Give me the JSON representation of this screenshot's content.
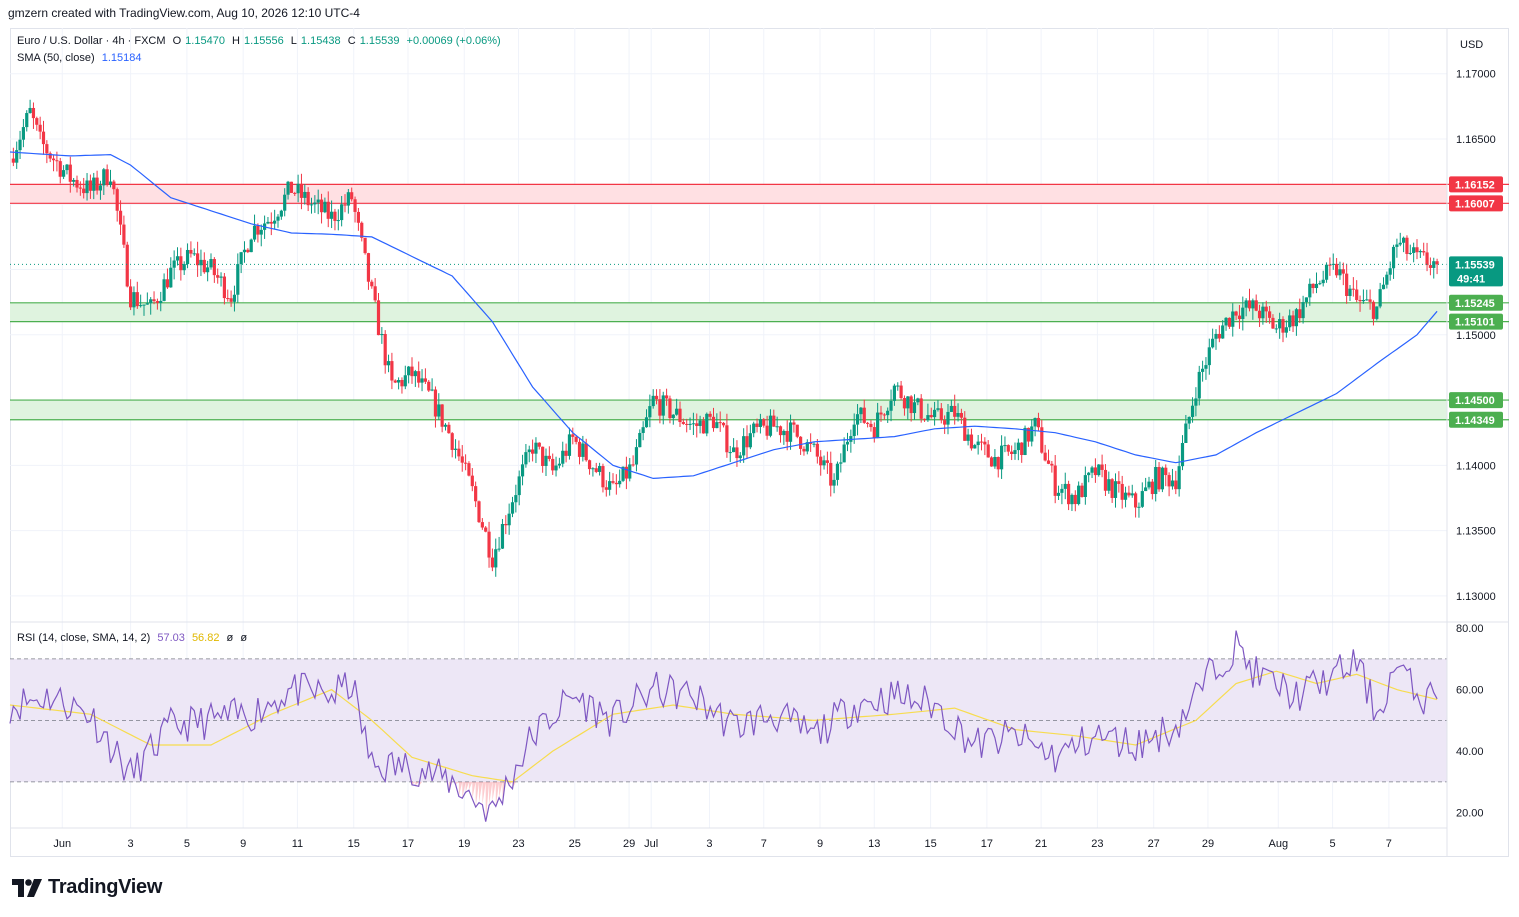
{
  "header": {
    "credit": "gmzern created with TradingView.com, Aug 10, 2026 12:10 UTC-4"
  },
  "legend": {
    "symbol": "Euro / U.S. Dollar · 4h · FXCM",
    "open_label": "O",
    "open": "1.15470",
    "high_label": "H",
    "high": "1.15556",
    "low_label": "L",
    "low": "1.15438",
    "close_label": "C",
    "close": "1.15539",
    "change": "+0.00069 (+0.06%)",
    "sma_label": "SMA (50, close)",
    "sma_value": "1.15184",
    "rsi_label": "RSI (14, close, SMA, 14, 2)",
    "rsi_value": "57.03",
    "rsi_sma_value": "56.82",
    "rsi_extra1": "ø",
    "rsi_extra2": "ø"
  },
  "price_axis": {
    "currency": "USD",
    "ticks": [
      "1.17000",
      "1.16500",
      "1.16000",
      "1.15500",
      "1.15000",
      "1.14500",
      "1.14000",
      "1.13500",
      "1.13000"
    ]
  },
  "rsi_axis": {
    "ticks": [
      "80.00",
      "60.00",
      "40.00",
      "20.00"
    ]
  },
  "time_axis": {
    "labels": [
      "Jun",
      "3",
      "5",
      "9",
      "11",
      "15",
      "17",
      "19",
      "23",
      "25",
      "29",
      "Jul",
      "3",
      "7",
      "9",
      "13",
      "15",
      "17",
      "21",
      "23",
      "27",
      "29",
      "Aug",
      "5",
      "7"
    ]
  },
  "tags": {
    "res_top": "1.16152",
    "res_bottom": "1.16007",
    "last_price": "1.15539",
    "countdown": "49:41",
    "sup1_top": "1.15245",
    "sup1_bottom": "1.15101",
    "sup2_top": "1.14500",
    "sup2_bottom": "1.14349"
  },
  "colors": {
    "up": "#089981",
    "down": "#f23645",
    "sma": "#2962ff",
    "rsi": "#7e57c2",
    "rsi_sma": "#f7dc4e",
    "resistance_fill": "#ffe0e3",
    "resistance_line": "#f23645",
    "support_fill": "#dff3df",
    "support_line": "#4caf50",
    "rsi_band": "#ede7f6"
  },
  "footer": {
    "brand": "TradingView"
  },
  "chart_data": [
    {
      "type": "candlestick",
      "title": "Euro / U.S. Dollar · 4h · FXCM",
      "ylim": [
        1.128,
        1.1735
      ],
      "x_range_dates": [
        "May 29",
        "Aug 10"
      ],
      "zones": [
        {
          "kind": "resistance",
          "top": 1.16152,
          "bottom": 1.16007
        },
        {
          "kind": "support",
          "top": 1.15245,
          "bottom": 1.15101
        },
        {
          "kind": "support",
          "top": 1.145,
          "bottom": 1.14349
        }
      ],
      "last_close": 1.15539,
      "close_path_anchors": [
        {
          "d": 0,
          "c": 1.1635
        },
        {
          "d": 1,
          "c": 1.167
        },
        {
          "d": 1.5,
          "c": 1.1648
        },
        {
          "d": 2,
          "c": 1.1638
        },
        {
          "d": 3,
          "c": 1.162
        },
        {
          "d": 4,
          "c": 1.161
        },
        {
          "d": 5,
          "c": 1.1625
        },
        {
          "d": 6,
          "c": 1.153
        },
        {
          "d": 7,
          "c": 1.152
        },
        {
          "d": 8,
          "c": 1.1548
        },
        {
          "d": 9,
          "c": 1.156
        },
        {
          "d": 10,
          "c": 1.155
        },
        {
          "d": 11,
          "c": 1.153
        },
        {
          "d": 12,
          "c": 1.158
        },
        {
          "d": 13,
          "c": 1.159
        },
        {
          "d": 14,
          "c": 1.1612
        },
        {
          "d": 15,
          "c": 1.16
        },
        {
          "d": 16,
          "c": 1.159
        },
        {
          "d": 17,
          "c": 1.1605
        },
        {
          "d": 18,
          "c": 1.153
        },
        {
          "d": 19,
          "c": 1.146
        },
        {
          "d": 20,
          "c": 1.147
        },
        {
          "d": 21,
          "c": 1.145
        },
        {
          "d": 22,
          "c": 1.142
        },
        {
          "d": 23,
          "c": 1.138
        },
        {
          "d": 24,
          "c": 1.133
        },
        {
          "d": 25,
          "c": 1.1375
        },
        {
          "d": 26,
          "c": 1.1415
        },
        {
          "d": 27,
          "c": 1.1395
        },
        {
          "d": 28,
          "c": 1.142
        },
        {
          "d": 29,
          "c": 1.14
        },
        {
          "d": 30,
          "c": 1.138
        },
        {
          "d": 31,
          "c": 1.14
        },
        {
          "d": 32,
          "c": 1.145
        },
        {
          "d": 33,
          "c": 1.144
        },
        {
          "d": 34,
          "c": 1.143
        },
        {
          "d": 35,
          "c": 1.1435
        },
        {
          "d": 36,
          "c": 1.141
        },
        {
          "d": 37,
          "c": 1.1425
        },
        {
          "d": 38,
          "c": 1.143
        },
        {
          "d": 39,
          "c": 1.1425
        },
        {
          "d": 40,
          "c": 1.141
        },
        {
          "d": 41,
          "c": 1.1385
        },
        {
          "d": 42,
          "c": 1.144
        },
        {
          "d": 43,
          "c": 1.143
        },
        {
          "d": 44,
          "c": 1.146
        },
        {
          "d": 45,
          "c": 1.1445
        },
        {
          "d": 46,
          "c": 1.1435
        },
        {
          "d": 47,
          "c": 1.144
        },
        {
          "d": 48,
          "c": 1.1415
        },
        {
          "d": 49,
          "c": 1.1405
        },
        {
          "d": 50,
          "c": 1.141
        },
        {
          "d": 51,
          "c": 1.143
        },
        {
          "d": 52,
          "c": 1.1385
        },
        {
          "d": 53,
          "c": 1.1375
        },
        {
          "d": 54,
          "c": 1.1395
        },
        {
          "d": 55,
          "c": 1.138
        },
        {
          "d": 56,
          "c": 1.137
        },
        {
          "d": 57,
          "c": 1.139
        },
        {
          "d": 58,
          "c": 1.139
        },
        {
          "d": 59,
          "c": 1.146
        },
        {
          "d": 60,
          "c": 1.15
        },
        {
          "d": 61,
          "c": 1.152
        },
        {
          "d": 62,
          "c": 1.152
        },
        {
          "d": 63,
          "c": 1.1505
        },
        {
          "d": 64,
          "c": 1.1515
        },
        {
          "d": 65,
          "c": 1.154
        },
        {
          "d": 66,
          "c": 1.155
        },
        {
          "d": 67,
          "c": 1.1525
        },
        {
          "d": 68,
          "c": 1.152
        },
        {
          "d": 69,
          "c": 1.157
        },
        {
          "d": 70,
          "c": 1.1558
        },
        {
          "d": 71,
          "c": 1.1554
        }
      ],
      "sma_anchors": [
        {
          "d": 0,
          "v": 1.164
        },
        {
          "d": 3,
          "v": 1.1637
        },
        {
          "d": 5,
          "v": 1.1638
        },
        {
          "d": 6,
          "v": 1.163
        },
        {
          "d": 8,
          "v": 1.1605
        },
        {
          "d": 10,
          "v": 1.1595
        },
        {
          "d": 12,
          "v": 1.1585
        },
        {
          "d": 14,
          "v": 1.1578
        },
        {
          "d": 16,
          "v": 1.1577
        },
        {
          "d": 18,
          "v": 1.1575
        },
        {
          "d": 20,
          "v": 1.156
        },
        {
          "d": 22,
          "v": 1.1545
        },
        {
          "d": 24,
          "v": 1.151
        },
        {
          "d": 26,
          "v": 1.146
        },
        {
          "d": 28,
          "v": 1.1425
        },
        {
          "d": 30,
          "v": 1.14
        },
        {
          "d": 32,
          "v": 1.139
        },
        {
          "d": 34,
          "v": 1.1392
        },
        {
          "d": 36,
          "v": 1.1402
        },
        {
          "d": 38,
          "v": 1.1412
        },
        {
          "d": 40,
          "v": 1.1418
        },
        {
          "d": 42,
          "v": 1.142
        },
        {
          "d": 44,
          "v": 1.1422
        },
        {
          "d": 46,
          "v": 1.1428
        },
        {
          "d": 48,
          "v": 1.143
        },
        {
          "d": 50,
          "v": 1.1428
        },
        {
          "d": 52,
          "v": 1.1425
        },
        {
          "d": 54,
          "v": 1.1418
        },
        {
          "d": 56,
          "v": 1.1408
        },
        {
          "d": 58,
          "v": 1.1402
        },
        {
          "d": 60,
          "v": 1.1408
        },
        {
          "d": 62,
          "v": 1.1425
        },
        {
          "d": 64,
          "v": 1.144
        },
        {
          "d": 66,
          "v": 1.1455
        },
        {
          "d": 68,
          "v": 1.1478
        },
        {
          "d": 70,
          "v": 1.15
        },
        {
          "d": 71,
          "v": 1.1518
        }
      ]
    },
    {
      "type": "line",
      "title": "RSI (14, close, SMA, 14, 2)",
      "ylim": [
        15,
        82
      ],
      "bands": {
        "upper": 70,
        "middle": 50,
        "lower": 30
      },
      "rsi_anchors": [
        {
          "d": 0,
          "v": 55
        },
        {
          "d": 2,
          "v": 58
        },
        {
          "d": 4,
          "v": 52
        },
        {
          "d": 6,
          "v": 32
        },
        {
          "d": 8,
          "v": 48
        },
        {
          "d": 10,
          "v": 50
        },
        {
          "d": 12,
          "v": 52
        },
        {
          "d": 14,
          "v": 60
        },
        {
          "d": 16,
          "v": 58
        },
        {
          "d": 17,
          "v": 62
        },
        {
          "d": 18,
          "v": 35
        },
        {
          "d": 20,
          "v": 35
        },
        {
          "d": 22,
          "v": 30
        },
        {
          "d": 24,
          "v": 20
        },
        {
          "d": 26,
          "v": 45
        },
        {
          "d": 28,
          "v": 58
        },
        {
          "d": 30,
          "v": 50
        },
        {
          "d": 32,
          "v": 60
        },
        {
          "d": 34,
          "v": 58
        },
        {
          "d": 36,
          "v": 48
        },
        {
          "d": 38,
          "v": 52
        },
        {
          "d": 40,
          "v": 45
        },
        {
          "d": 42,
          "v": 55
        },
        {
          "d": 44,
          "v": 58
        },
        {
          "d": 46,
          "v": 55
        },
        {
          "d": 48,
          "v": 42
        },
        {
          "d": 50,
          "v": 45
        },
        {
          "d": 52,
          "v": 38
        },
        {
          "d": 54,
          "v": 45
        },
        {
          "d": 56,
          "v": 42
        },
        {
          "d": 58,
          "v": 48
        },
        {
          "d": 60,
          "v": 68
        },
        {
          "d": 61,
          "v": 74
        },
        {
          "d": 62,
          "v": 65
        },
        {
          "d": 64,
          "v": 58
        },
        {
          "d": 66,
          "v": 65
        },
        {
          "d": 67,
          "v": 69
        },
        {
          "d": 68,
          "v": 52
        },
        {
          "d": 69,
          "v": 68
        },
        {
          "d": 70,
          "v": 58
        },
        {
          "d": 71,
          "v": 57
        }
      ],
      "rsi_sma_anchors": [
        {
          "d": 0,
          "v": 55
        },
        {
          "d": 4,
          "v": 52
        },
        {
          "d": 7,
          "v": 42
        },
        {
          "d": 10,
          "v": 42
        },
        {
          "d": 13,
          "v": 52
        },
        {
          "d": 16,
          "v": 60
        },
        {
          "d": 18,
          "v": 50
        },
        {
          "d": 20,
          "v": 38
        },
        {
          "d": 23,
          "v": 32
        },
        {
          "d": 25,
          "v": 30
        },
        {
          "d": 27,
          "v": 40
        },
        {
          "d": 30,
          "v": 52
        },
        {
          "d": 33,
          "v": 55
        },
        {
          "d": 36,
          "v": 52
        },
        {
          "d": 40,
          "v": 50
        },
        {
          "d": 44,
          "v": 52
        },
        {
          "d": 47,
          "v": 54
        },
        {
          "d": 50,
          "v": 47
        },
        {
          "d": 53,
          "v": 45
        },
        {
          "d": 56,
          "v": 42
        },
        {
          "d": 59,
          "v": 50
        },
        {
          "d": 61,
          "v": 62
        },
        {
          "d": 63,
          "v": 66
        },
        {
          "d": 65,
          "v": 62
        },
        {
          "d": 67,
          "v": 65
        },
        {
          "d": 69,
          "v": 60
        },
        {
          "d": 71,
          "v": 56.8
        }
      ]
    }
  ]
}
